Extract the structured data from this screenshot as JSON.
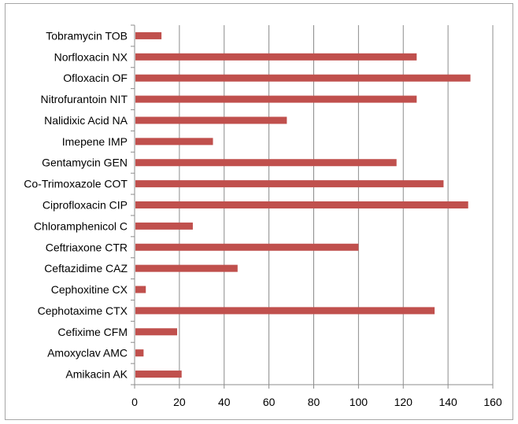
{
  "chart_data": {
    "type": "bar",
    "orientation": "horizontal",
    "categories": [
      "Tobramycin TOB",
      "Norfloxacin NX",
      "Ofloxacin OF",
      "Nitrofurantoin NIT",
      "Nalidixic Acid NA",
      "Imepene IMP",
      "Gentamycin GEN",
      "Co-Trimoxazole COT",
      "Ciprofloxacin CIP",
      "Chloramphenicol C",
      "Ceftriaxone CTR",
      "Ceftazidime CAZ",
      "Cephoxitine CX",
      "Cephotaxime CTX",
      "Cefixime CFM",
      "Amoxyclav AMC",
      "Amikacin AK"
    ],
    "values": [
      12,
      126,
      150,
      126,
      68,
      35,
      117,
      138,
      149,
      26,
      100,
      46,
      5,
      134,
      19,
      4,
      21
    ],
    "x_ticks": [
      "0",
      "20",
      "40",
      "60",
      "80",
      "100",
      "120",
      "140",
      "160"
    ],
    "xlim": [
      0,
      160
    ],
    "grid": true,
    "legend": "none",
    "title": "",
    "xlabel": "",
    "ylabel": "",
    "bar_color": "#c0504d",
    "grid_color": "#8c8c8c"
  }
}
